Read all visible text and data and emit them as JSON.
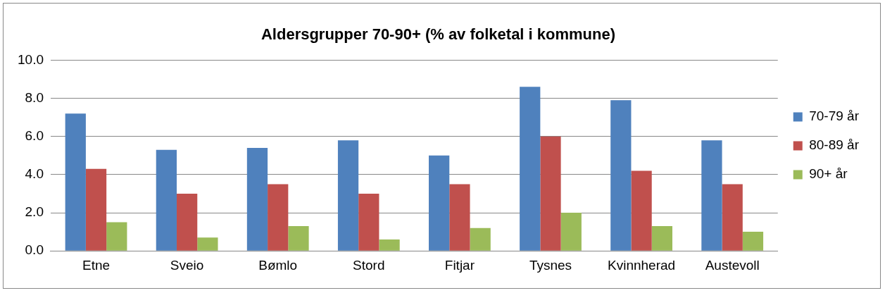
{
  "chart_data": {
    "type": "bar",
    "title": "Aldersgrupper 70-90+ (% av folketal i kommune)",
    "categories": [
      "Etne",
      "Sveio",
      "Bømlo",
      "Stord",
      "Fitjar",
      "Tysnes",
      "Kvinnherad",
      "Austevoll"
    ],
    "series": [
      {
        "name": "70-79 år",
        "color": "#4f81bd",
        "values": [
          7.2,
          5.3,
          5.4,
          5.8,
          5.0,
          8.6,
          7.9,
          5.8
        ]
      },
      {
        "name": "80-89 år",
        "color": "#c0504d",
        "values": [
          4.3,
          3.0,
          3.5,
          3.0,
          3.5,
          6.0,
          4.2,
          3.5
        ]
      },
      {
        "name": "90+ år",
        "color": "#9bbb59",
        "values": [
          1.5,
          0.7,
          1.3,
          0.6,
          1.2,
          2.0,
          1.3,
          1.0
        ]
      }
    ],
    "ylim": [
      0,
      10
    ],
    "yticks": [
      {
        "value": 0,
        "label": "0.0"
      },
      {
        "value": 2,
        "label": "2.0"
      },
      {
        "value": 4,
        "label": "4.0"
      },
      {
        "value": 6,
        "label": "6.0"
      },
      {
        "value": 8,
        "label": "8.0"
      },
      {
        "value": 10,
        "label": "10.0"
      }
    ],
    "grid": "y",
    "legend": "right"
  }
}
